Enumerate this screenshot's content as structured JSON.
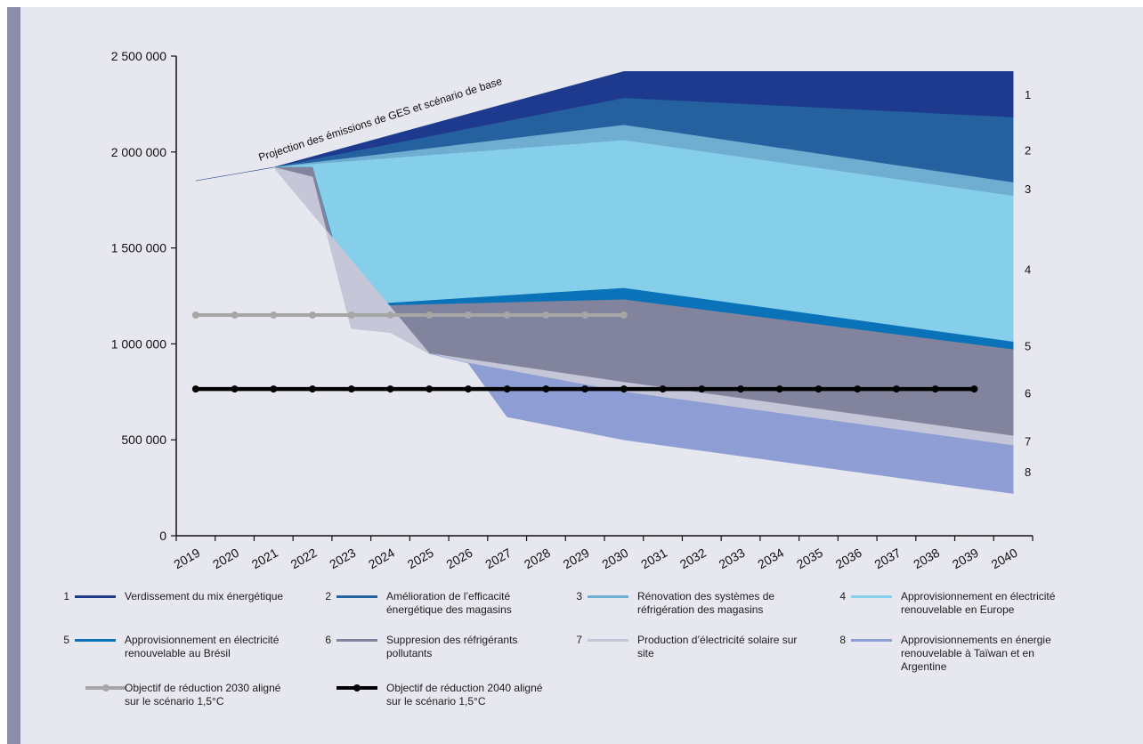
{
  "chart_data": {
    "type": "area",
    "x": [
      2019,
      2020,
      2021,
      2022,
      2023,
      2024,
      2025,
      2026,
      2027,
      2028,
      2029,
      2030,
      2031,
      2032,
      2033,
      2034,
      2035,
      2036,
      2037,
      2038,
      2039,
      2040
    ],
    "ylim": [
      0,
      2500000
    ],
    "yticks": [
      0,
      500000,
      1000000,
      1500000,
      2000000,
      2500000
    ],
    "ytick_labels": [
      "0",
      "500 000",
      "1 000 000",
      "1 500 000",
      "2 000 000",
      "2 500 000"
    ],
    "annotation": "Projection des émissions de GES et scénario de base",
    "boundaries": [
      {
        "points": [
          [
            2019,
            1850000
          ],
          [
            2021,
            1920000
          ],
          [
            2030,
            2420000
          ],
          [
            2040,
            2420000
          ]
        ]
      },
      {
        "points": [
          [
            2021,
            1920000
          ],
          [
            2030,
            2280000
          ],
          [
            2040,
            2180000
          ]
        ]
      },
      {
        "points": [
          [
            2021,
            1920000
          ],
          [
            2030,
            2140000
          ],
          [
            2040,
            1840000
          ]
        ]
      },
      {
        "points": [
          [
            2021,
            1920000
          ],
          [
            2030,
            2060000
          ],
          [
            2040,
            1770000
          ]
        ]
      },
      {
        "points": [
          [
            2021,
            1920000
          ],
          [
            2022,
            1920000
          ],
          [
            2023,
            1200000
          ],
          [
            2030,
            1290000
          ],
          [
            2040,
            1010000
          ]
        ]
      },
      {
        "points": [
          [
            2021,
            1920000
          ],
          [
            2022,
            1920000
          ],
          [
            2023,
            1180000
          ],
          [
            2024,
            1200000
          ],
          [
            2030,
            1230000
          ],
          [
            2040,
            970000
          ]
        ]
      },
      {
        "points": [
          [
            2021,
            1920000
          ],
          [
            2022,
            1870000
          ],
          [
            2023,
            1080000
          ],
          [
            2024,
            1060000
          ],
          [
            2025,
            950000
          ],
          [
            2030,
            800000
          ],
          [
            2040,
            520000
          ]
        ]
      },
      {
        "points": [
          [
            2025,
            950000
          ],
          [
            2026,
            900000
          ],
          [
            2030,
            750000
          ],
          [
            2040,
            470000
          ]
        ]
      },
      {
        "points": [
          [
            2026,
            900000
          ],
          [
            2027,
            620000
          ],
          [
            2030,
            500000
          ],
          [
            2040,
            220000
          ]
        ]
      }
    ],
    "segment_labels": [
      {
        "label": "1",
        "y": 2300000
      },
      {
        "label": "2",
        "y": 2010000
      },
      {
        "label": "3",
        "y": 1810000
      },
      {
        "label": "4",
        "y": 1390000
      },
      {
        "label": "5",
        "y": 990000
      },
      {
        "label": "6",
        "y": 745000
      },
      {
        "label": "7",
        "y": 495000
      },
      {
        "label": "8",
        "y": 335000
      }
    ],
    "series": [
      {
        "name": "Verdissement du mix énergétique",
        "number": "1",
        "color": "#1e3a8e"
      },
      {
        "name": "Amélioration de l’efficacité énergétique des magasins",
        "number": "2",
        "color": "#24619e"
      },
      {
        "name": "Rénovation des systèmes de réfrigération des magasins",
        "number": "3",
        "color": "#6fadd1"
      },
      {
        "name": "Approvisionnement en électricité renouvelable en Europe",
        "number": "4",
        "color": "#86cfea"
      },
      {
        "name": "Approvisionnement en électricité renouvelable au Brésil",
        "number": "5",
        "color": "#0a72b8"
      },
      {
        "name": "Suppresion des réfrigérants pollutants",
        "number": "6",
        "color": "#82849e"
      },
      {
        "name": "Production d’électricité solaire sur site",
        "number": "7",
        "color": "#c5c7d8"
      },
      {
        "name": "Approvisionnements en énergie renouvelable à Taïwan et en Argentine",
        "number": "8",
        "color": "#8e9ed4"
      }
    ],
    "targets": [
      {
        "name": "Objectif de réduction 2030 aligné sur le scénario 1,5°C",
        "value": 1150000,
        "x_start": 2019,
        "x_end": 2030,
        "color": "#a6a6a6"
      },
      {
        "name": "Objectif de réduction 2040 aligné sur le scénario 1,5°C",
        "value": 765000,
        "x_start": 2019,
        "x_end": 2039,
        "color": "#000000"
      }
    ],
    "colors": {
      "panel": "#e6e7ef",
      "side_bar": "#8c8da8",
      "axis": "#111111"
    }
  },
  "legend": {
    "items": [
      {
        "number": "1",
        "label": "Verdissement du mix énergétique"
      },
      {
        "number": "2",
        "label": "Amélioration de l’efficacité énergétique des magasins"
      },
      {
        "number": "3",
        "label": "Rénovation des systèmes de réfrigération des magasins"
      },
      {
        "number": "4",
        "label": "Approvisionnement en électricité renouvelable en Europe"
      },
      {
        "number": "5",
        "label": "Approvisionnement en électricité renouvelable au Brésil"
      },
      {
        "number": "6",
        "label": "Suppresion des réfrigérants pollutants"
      },
      {
        "number": "7",
        "label": "Production d’électricité solaire sur site"
      },
      {
        "number": "8",
        "label": "Approvisionnements en énergie renouvelable à Taïwan et en Argentine"
      }
    ],
    "targets": [
      {
        "label": "Objectif de réduction 2030 aligné sur le scénario 1,5°C"
      },
      {
        "label": "Objectif de réduction 2040 aligné sur le scénario 1,5°C"
      }
    ]
  }
}
